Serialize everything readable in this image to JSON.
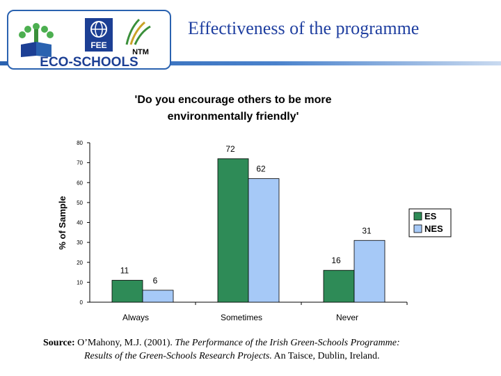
{
  "header": {
    "slide_title": "Effectiveness of the programme",
    "logo_text": "ECO-SCHOOLS",
    "fee_text": "FEE",
    "ntm_text": "NTM"
  },
  "colors": {
    "es": "#2e8b57",
    "nes": "#a6c9f7",
    "title": "#1f3fa0",
    "logo_blue": "#1c3f94"
  },
  "chart_data": {
    "type": "bar",
    "title": "'Do you encourage others to be more environmentally friendly'",
    "title_lines": [
      "'Do you encourage others to be more",
      "environmentally friendly'"
    ],
    "xlabel": "",
    "ylabel": "% of Sample",
    "ylim": [
      0,
      80
    ],
    "yticks": [
      "0",
      "10",
      "20",
      "30",
      "40",
      "50",
      "60",
      "70",
      "80"
    ],
    "categories": [
      "Always",
      "Sometimes",
      "Never"
    ],
    "series": [
      {
        "name": "ES",
        "values": [
          11,
          72,
          16
        ],
        "labels": [
          "11",
          "72",
          "16"
        ]
      },
      {
        "name": "NES",
        "values": [
          6,
          62,
          31
        ],
        "labels": [
          "6",
          "62",
          "31"
        ]
      }
    ],
    "legend_position": "right",
    "grid": false
  },
  "source": {
    "label": "Source:",
    "text1": "O’Mahony, M.J. (2001). ",
    "italic1": "The Performance of the Irish Green-Schools Programme:",
    "italic2": "Results of the Green-Schools Research Projects.",
    "text2": " An Taisce, Dublin, Ireland."
  }
}
